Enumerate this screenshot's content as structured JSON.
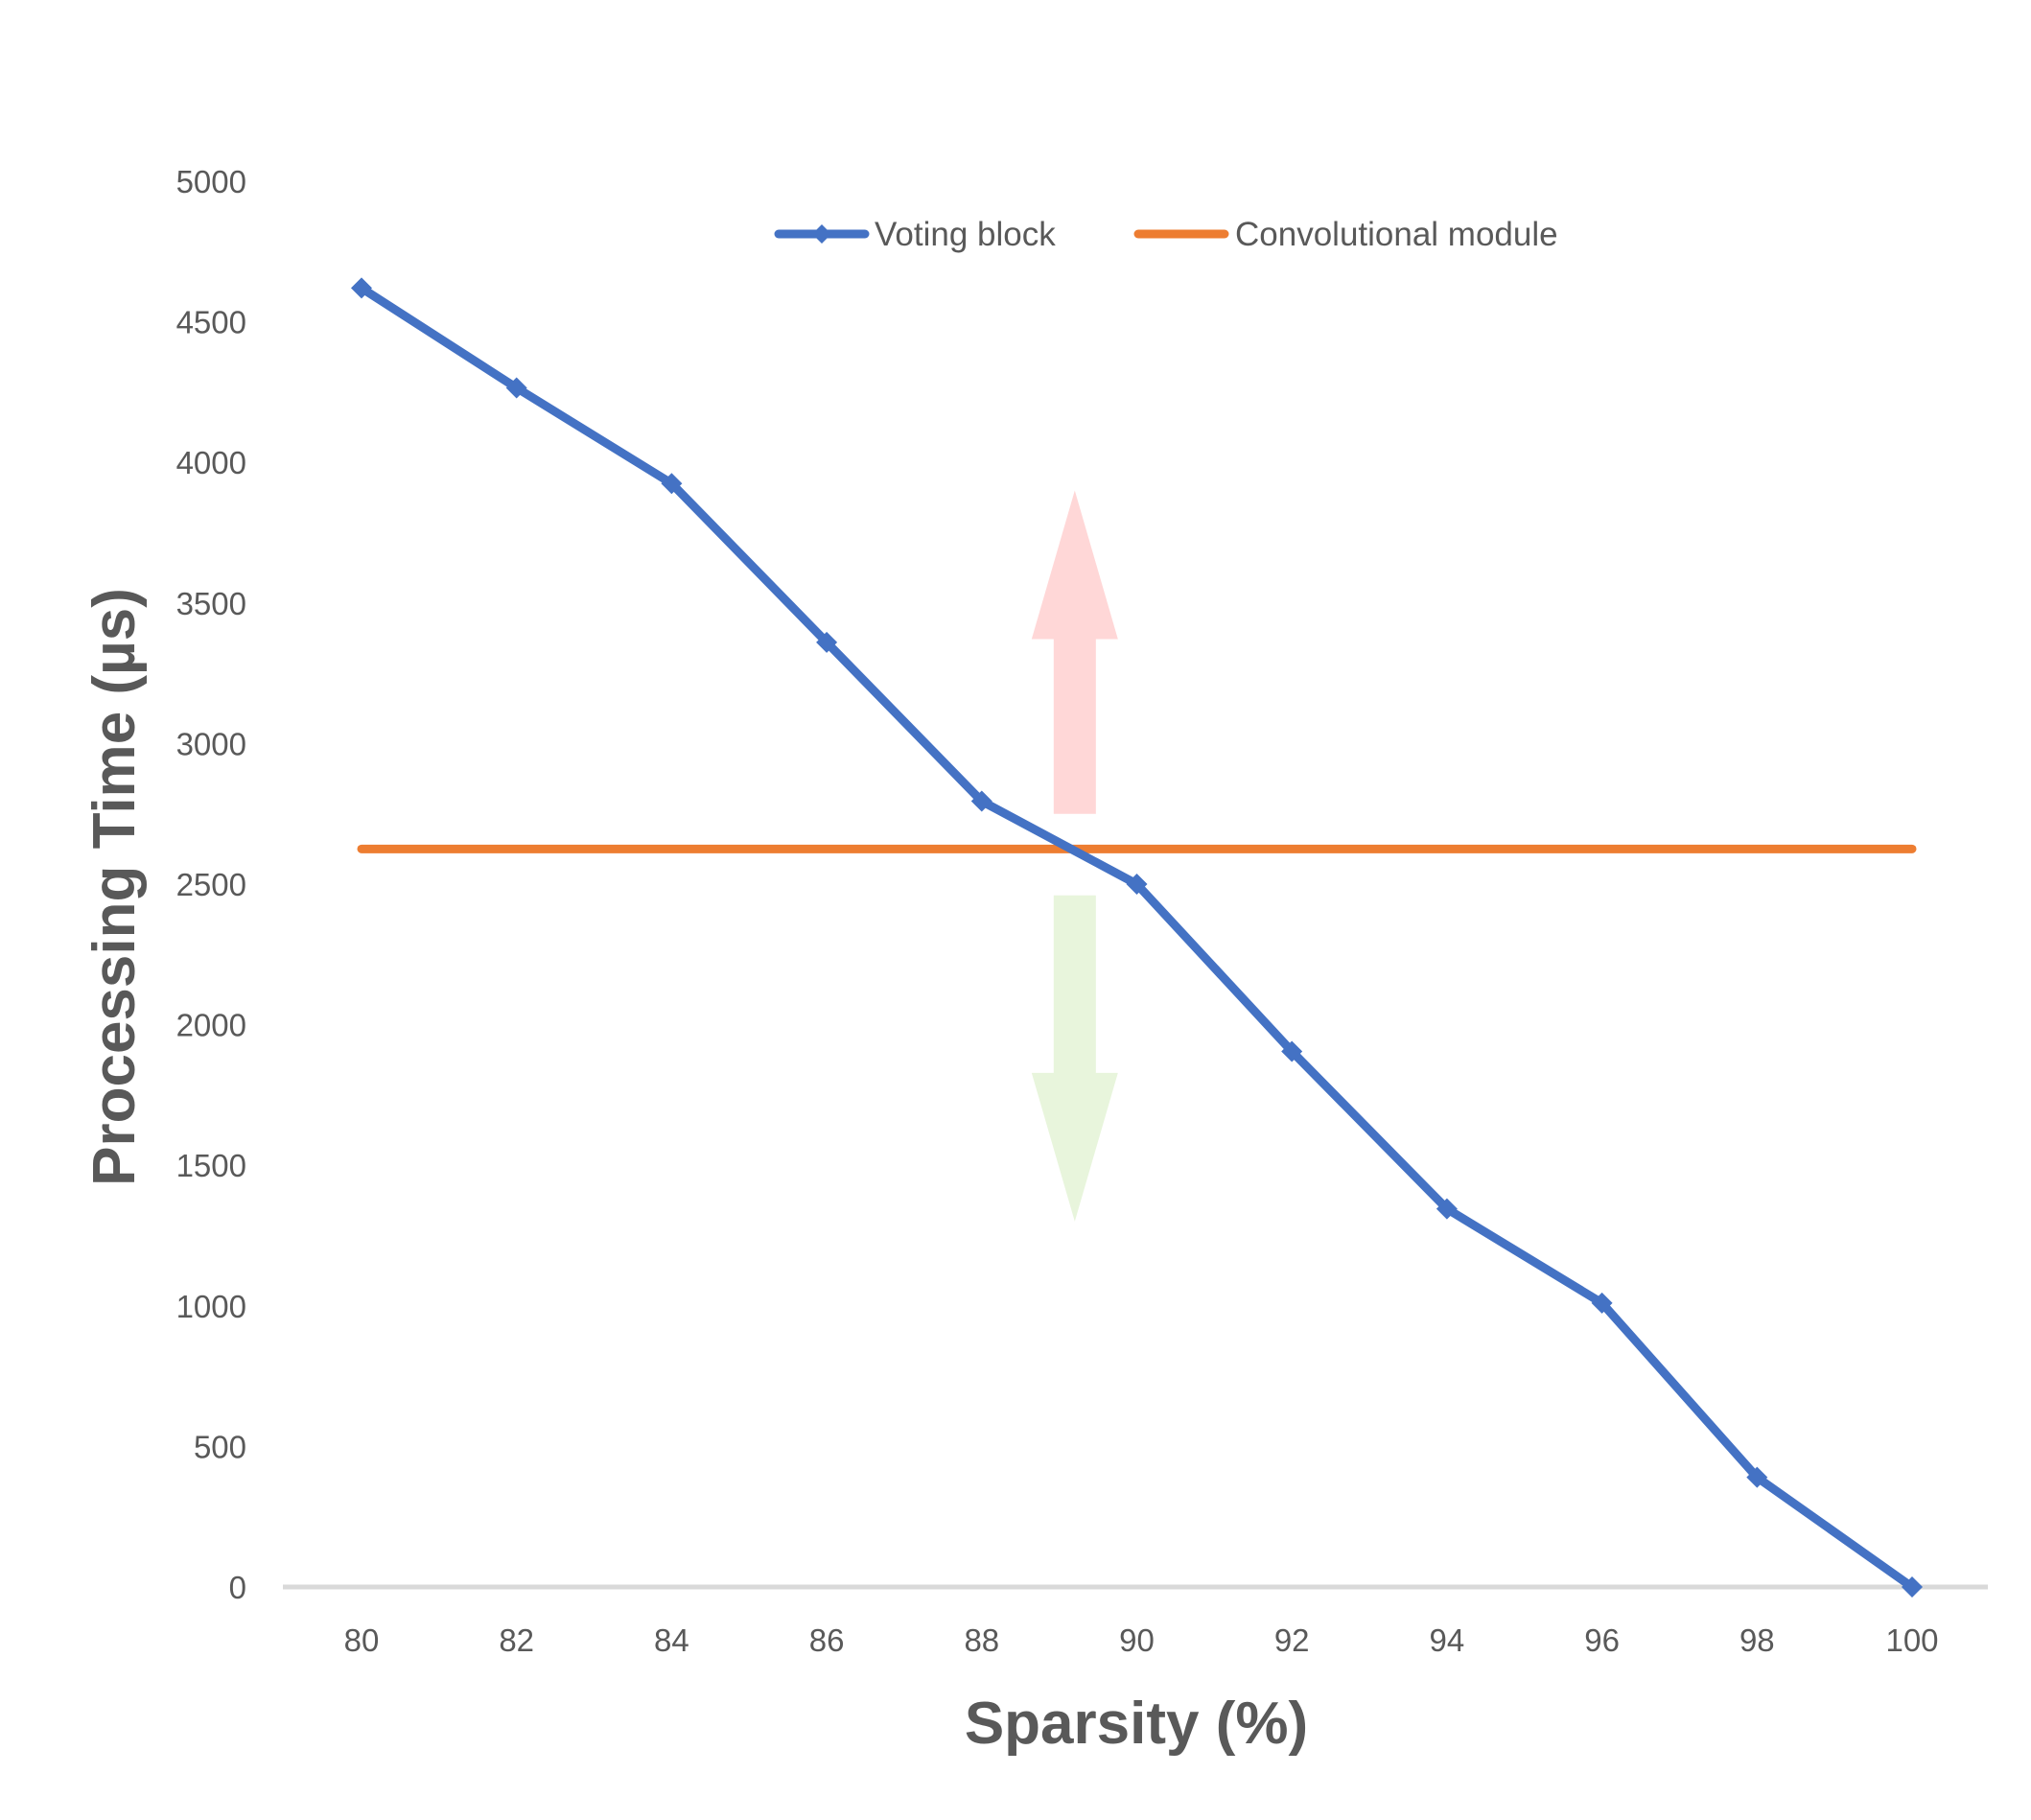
{
  "chart_data": {
    "type": "line",
    "x": [
      80,
      82,
      84,
      86,
      88,
      90,
      92,
      94,
      96,
      98,
      100
    ],
    "xlabel": "Sparsity (%)",
    "ylabel": "Processing Time (µs)",
    "ylim": [
      0,
      5000
    ],
    "y_ticks": [
      "0",
      "500",
      "1000",
      "1500",
      "2000",
      "2500",
      "3000",
      "3500",
      "4000",
      "4500",
      "5000"
    ],
    "x_ticks": [
      "80",
      "82",
      "84",
      "86",
      "88",
      "90",
      "92",
      "94",
      "96",
      "98",
      "100"
    ],
    "grid": false,
    "legend_position": "top",
    "series": [
      {
        "name": "Voting block",
        "color": "#4472C4",
        "marker": "diamond",
        "values": [
          4620,
          4265,
          3925,
          3360,
          2795,
          2500,
          1905,
          1345,
          1010,
          390,
          0
        ]
      },
      {
        "name": "Convolutional module",
        "color": "#ED7D31",
        "marker": "none",
        "values": [
          2625,
          2625,
          2625,
          2625,
          2625,
          2625,
          2625,
          2625,
          2625,
          2625,
          2625
        ]
      }
    ],
    "annotations": [
      {
        "type": "arrow",
        "direction": "up",
        "color": "#FFD7D7",
        "x": 89.2,
        "y_from": 2750,
        "y_to": 3900
      },
      {
        "type": "arrow",
        "direction": "down",
        "color": "#E8F5DC",
        "x": 89.2,
        "y_from": 2460,
        "y_to": 1300
      }
    ]
  }
}
